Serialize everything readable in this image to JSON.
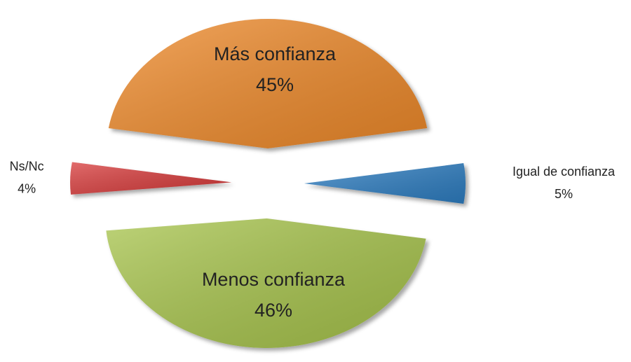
{
  "chart_data": {
    "type": "pie",
    "categories": [
      "Más confianza",
      "Igual de confianza",
      "Menos confianza",
      "Ns/Nc"
    ],
    "values": [
      45,
      5,
      46,
      4
    ],
    "value_labels": [
      "45%",
      "5%",
      "46%",
      "4%"
    ],
    "colors": [
      "#ef8a2c",
      "#2f7ec2",
      "#a7c44c",
      "#d83a3b"
    ]
  }
}
